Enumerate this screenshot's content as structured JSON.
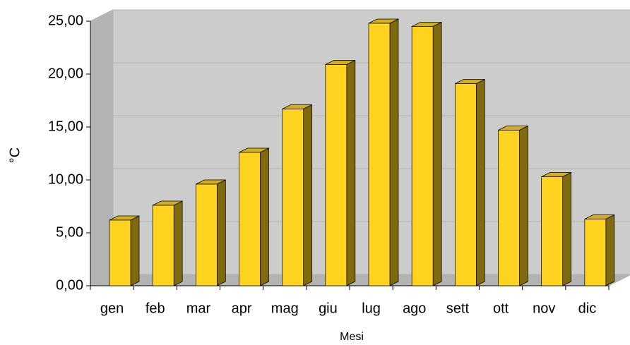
{
  "chart_data": {
    "type": "bar3d",
    "x_label": "Mesi",
    "y_label": "°C",
    "categories": [
      "gen",
      "feb",
      "mar",
      "apr",
      "mag",
      "giu",
      "lug",
      "ago",
      "sett",
      "ott",
      "nov",
      "dic"
    ],
    "values": [
      6.2,
      7.6,
      9.6,
      12.6,
      16.7,
      20.9,
      24.8,
      24.5,
      19.1,
      14.7,
      10.3,
      6.3
    ],
    "color": "#ffd320",
    "ylim": [
      0,
      25
    ],
    "yticks": [
      {
        "value": 0,
        "label": "0,00"
      },
      {
        "value": 5,
        "label": "5,00"
      },
      {
        "value": 10,
        "label": "10,00"
      },
      {
        "value": 15,
        "label": "15,00"
      },
      {
        "value": 20,
        "label": "20,00"
      },
      {
        "value": 25,
        "label": "25,00"
      }
    ],
    "grid": true
  }
}
